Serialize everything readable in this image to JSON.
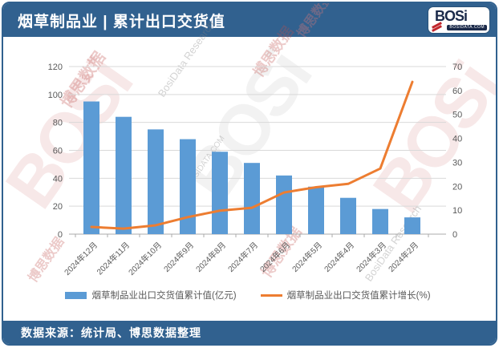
{
  "header": {
    "title": "烟草制品业 | 累计出口交货值",
    "logo": {
      "text": "BOSi",
      "domain": "BOSIDATA.COM"
    }
  },
  "footer": {
    "source": "数据来源：统计局、博思数据整理"
  },
  "watermark": {
    "brand": "BOSi",
    "cn": "博思数据",
    "en": "BosiData Research",
    "domain": "BOSIDATA.COM"
  },
  "colors": {
    "frame": "#31618F",
    "bar": "#5B9BD5",
    "line": "#ED7D31",
    "grid": "#D9D9D9",
    "axis_line": "#ABABAB",
    "axis_text": "#595959"
  },
  "chart_data": {
    "type": "bar",
    "subtype": "bar+line combo",
    "categories": [
      "2024年12月",
      "2024年11月",
      "2024年10月",
      "2024年9月",
      "2024年8月",
      "2024年7月",
      "2024年6月",
      "2024年5月",
      "2024年4月",
      "2024年3月",
      "2024年2月"
    ],
    "series": [
      {
        "name": "烟草制品业出口交货值累计值(亿元)",
        "type": "bar",
        "axis": "left",
        "color": "#5B9BD5",
        "values": [
          95,
          84,
          75,
          68,
          59,
          51,
          42,
          34,
          26,
          18,
          12
        ]
      },
      {
        "name": "烟草制品业出口交货值累计增长(%)",
        "type": "line",
        "axis": "right",
        "color": "#ED7D31",
        "values": [
          3.0,
          2.3,
          3.7,
          7.1,
          9.8,
          11.0,
          17.4,
          19.6,
          21.0,
          27.4,
          63.6
        ]
      }
    ],
    "left_axis": {
      "min": 0,
      "max": 120,
      "ticks": [
        0,
        20,
        40,
        60,
        80,
        100,
        120
      ]
    },
    "right_axis": {
      "min": 0,
      "max": 70,
      "ticks": [
        0,
        10,
        20,
        30,
        40,
        50,
        60,
        70
      ]
    },
    "grid": true,
    "legend_position": "bottom",
    "x_label_rotation": -45
  }
}
